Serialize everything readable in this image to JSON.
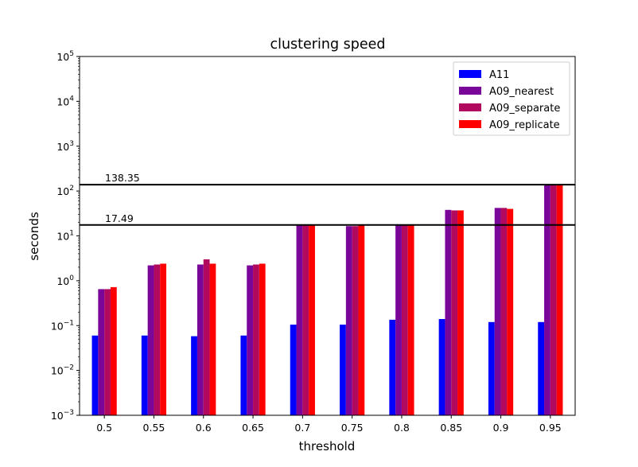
{
  "chart_data": {
    "type": "bar",
    "title": "clustering speed",
    "xlabel": "threshold",
    "ylabel": "seconds",
    "yscale": "log",
    "ylim": [
      0.001,
      100000
    ],
    "y_ticks": [
      {
        "value": 0.001,
        "base": "10",
        "exp": "−3"
      },
      {
        "value": 0.01,
        "base": "10",
        "exp": "−2"
      },
      {
        "value": 0.1,
        "base": "10",
        "exp": "−1"
      },
      {
        "value": 1,
        "base": "10",
        "exp": "0"
      },
      {
        "value": 10,
        "base": "10",
        "exp": "1"
      },
      {
        "value": 100,
        "base": "10",
        "exp": "2"
      },
      {
        "value": 1000,
        "base": "10",
        "exp": "3"
      },
      {
        "value": 10000,
        "base": "10",
        "exp": "4"
      },
      {
        "value": 100000,
        "base": "10",
        "exp": "5"
      }
    ],
    "categories": [
      "0.5",
      "0.55",
      "0.6",
      "0.65",
      "0.7",
      "0.75",
      "0.8",
      "0.85",
      "0.9",
      "0.95"
    ],
    "series": [
      {
        "name": "A11",
        "color": "#0000ff",
        "values": [
          0.06,
          0.06,
          0.058,
          0.06,
          0.105,
          0.105,
          0.135,
          0.14,
          0.12,
          0.12
        ]
      },
      {
        "name": "A09_nearest",
        "color": "#7a0599",
        "values": [
          0.65,
          2.2,
          2.3,
          2.2,
          17.4,
          16.5,
          17.0,
          38.0,
          42.0,
          138.35
        ]
      },
      {
        "name": "A09_separate",
        "color": "#b0095d",
        "values": [
          0.65,
          2.3,
          3.0,
          2.3,
          17.4,
          16.5,
          17.0,
          37.0,
          42.0,
          138.35
        ]
      },
      {
        "name": "A09_replicate",
        "color": "#ff0000",
        "values": [
          0.72,
          2.4,
          2.4,
          2.4,
          17.49,
          17.0,
          17.0,
          37.0,
          40.0,
          138.35
        ]
      }
    ],
    "reference_lines": [
      {
        "value": 138.35,
        "label": "138.35"
      },
      {
        "value": 17.49,
        "label": "17.49"
      }
    ],
    "legend_position": "top-right",
    "grid": false
  }
}
